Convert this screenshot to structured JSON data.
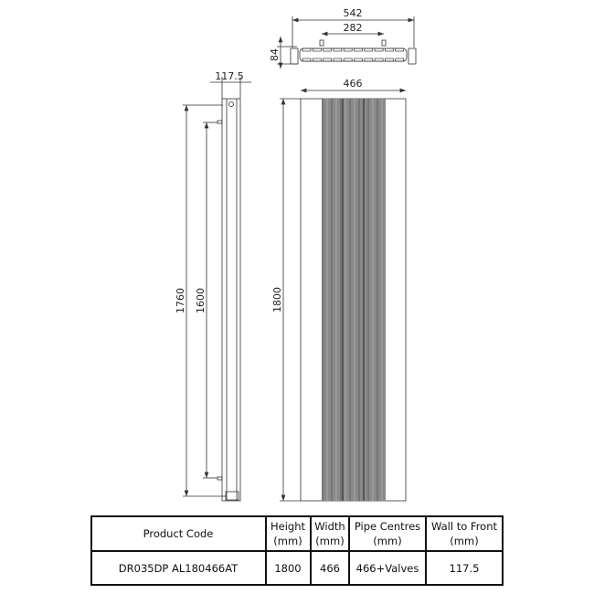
{
  "dimensions": {
    "top_overall_width": "542",
    "top_pipe_centres": "282",
    "top_depth": "84",
    "side_wall_to_front": "117.5",
    "side_bracket_height": "1760",
    "side_bracket_inner": "1600",
    "front_width": "466",
    "front_height": "1800"
  },
  "table": {
    "headers": [
      {
        "line1": "Product Code",
        "line2": ""
      },
      {
        "line1": "Height",
        "line2": "(mm)"
      },
      {
        "line1": "Width",
        "line2": "(mm)"
      },
      {
        "line1": "Pipe Centres",
        "line2": "(mm)"
      },
      {
        "line1": "Wall to Front",
        "line2": "(mm)"
      }
    ],
    "rows": [
      [
        "DR035DP AL180466AT",
        "1800",
        "466",
        "466+Valves",
        "117.5"
      ]
    ]
  },
  "colors": {
    "panel_gray": "#8a8a8a",
    "line": "#333333"
  }
}
